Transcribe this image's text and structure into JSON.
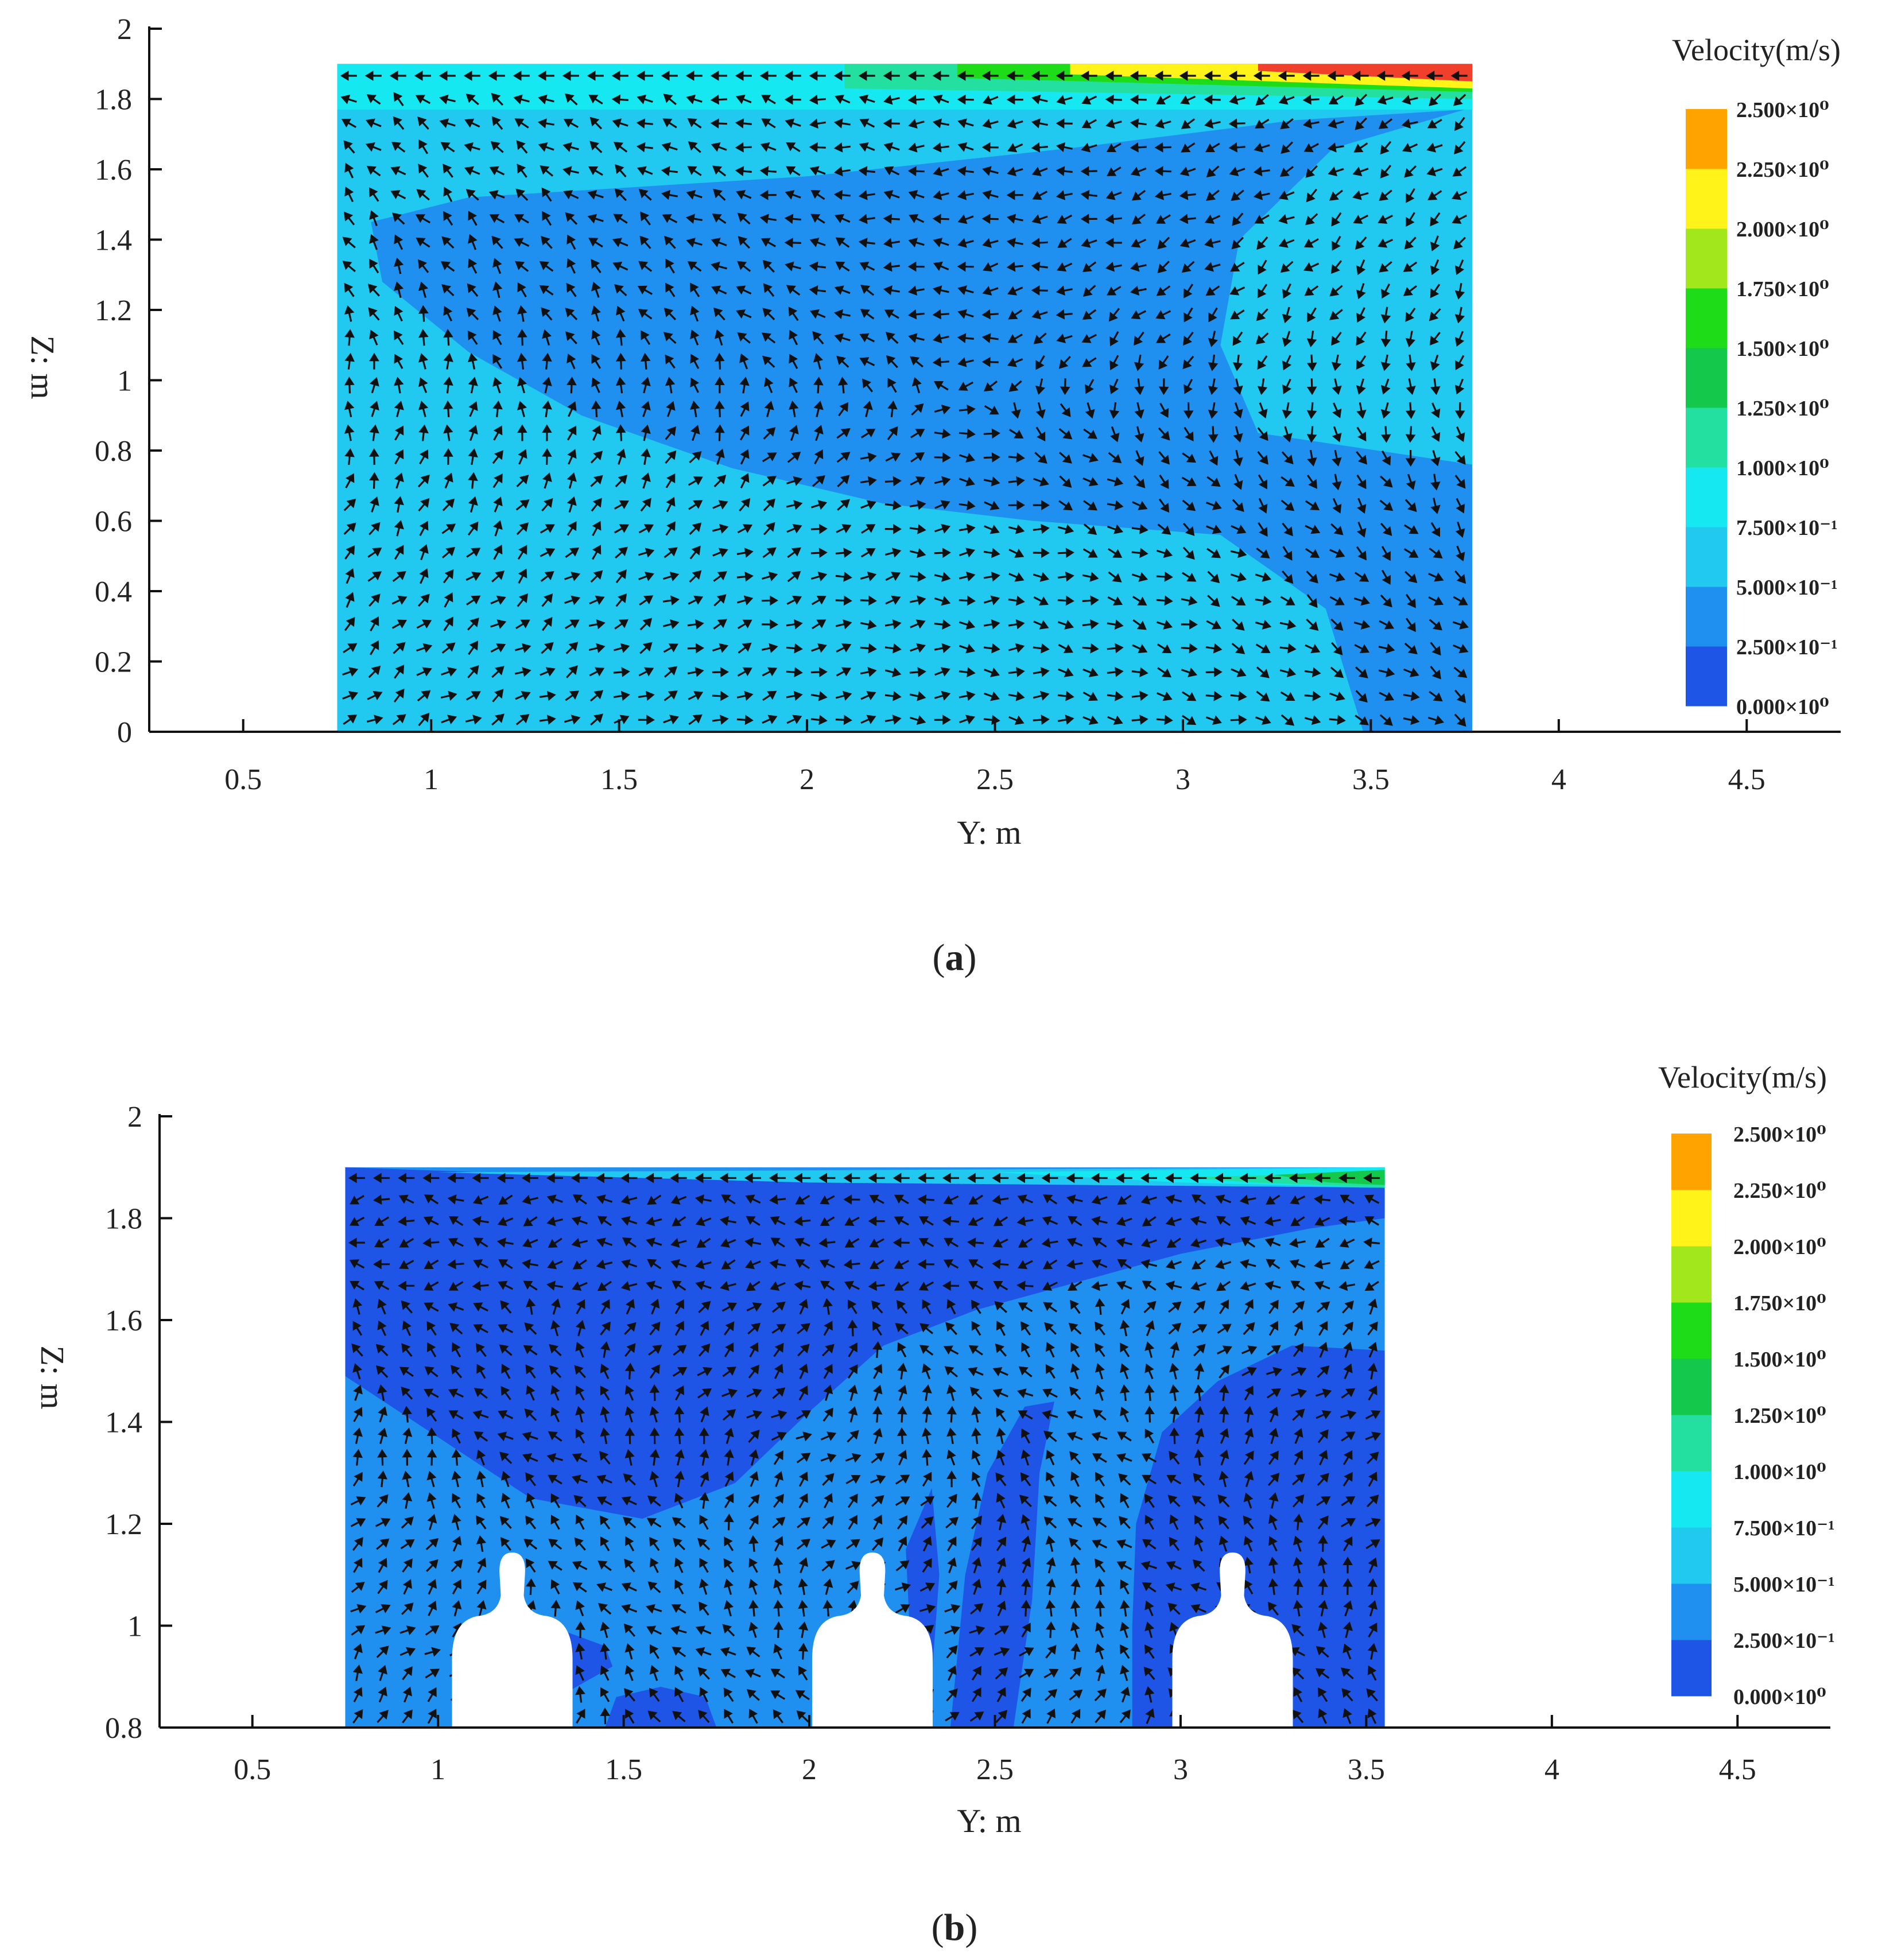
{
  "chart_data": [
    {
      "type": "heatmap",
      "subtype": "cfd-velocity-contour-with-vectors",
      "panel_label_prefix": "(",
      "panel_label": "a",
      "panel_label_suffix": ")",
      "xlabel": "Y: m",
      "ylabel": "Z: m",
      "xlim": [
        0.25,
        4.75
      ],
      "ylim": [
        0,
        2
      ],
      "xticks": [
        0.5,
        1,
        1.5,
        2,
        2.5,
        3,
        3.5,
        4,
        4.5
      ],
      "xtick_labels": [
        "0.5",
        "1",
        "1.5",
        "2",
        "2.5",
        "3",
        "3.5",
        "4",
        "4.5"
      ],
      "yticks": [
        0,
        0.2,
        0.4,
        0.6,
        0.8,
        1,
        1.2,
        1.4,
        1.6,
        1.8,
        2
      ],
      "ytick_labels": [
        "0",
        "0.2",
        "0.4",
        "0.6",
        "0.8",
        "1",
        "1.2",
        "1.4",
        "1.6",
        "1.8",
        "2"
      ],
      "domain": {
        "y_range": [
          0.75,
          3.77
        ],
        "z_range": [
          0,
          1.9
        ]
      },
      "regions": [
        {
          "level": 0.5,
          "polygon": [
            [
              0.75,
              0
            ],
            [
              3.77,
              0
            ],
            [
              3.77,
              1.9
            ],
            [
              0.75,
              1.9
            ]
          ]
        },
        {
          "level": 0.25,
          "polygon": [
            [
              0.87,
              1.28
            ],
            [
              0.84,
              1.45
            ],
            [
              1.1,
              1.52
            ],
            [
              2.0,
              1.58
            ],
            [
              2.7,
              1.66
            ],
            [
              3.3,
              1.74
            ],
            [
              3.75,
              1.77
            ],
            [
              3.4,
              1.66
            ],
            [
              3.15,
              1.4
            ],
            [
              3.1,
              1.1
            ],
            [
              3.2,
              0.85
            ],
            [
              3.77,
              0.76
            ],
            [
              3.77,
              0
            ],
            [
              3.48,
              0
            ],
            [
              3.38,
              0.35
            ],
            [
              3.1,
              0.56
            ],
            [
              2.6,
              0.6
            ],
            [
              2.2,
              0.65
            ],
            [
              1.8,
              0.75
            ],
            [
              1.4,
              0.9
            ],
            [
              1.1,
              1.08
            ]
          ]
        },
        {
          "level": 0.75,
          "polygon": [
            [
              0.75,
              1.77
            ],
            [
              3.77,
              1.77
            ],
            [
              3.77,
              1.9
            ],
            [
              0.75,
              1.9
            ]
          ]
        },
        {
          "level": 1.0,
          "polygon": [
            [
              2.1,
              1.83
            ],
            [
              3.77,
              1.8
            ],
            [
              3.77,
              1.9
            ],
            [
              2.1,
              1.9
            ]
          ]
        },
        {
          "level": 1.5,
          "polygon": [
            [
              2.4,
              1.86
            ],
            [
              3.77,
              1.82
            ],
            [
              3.77,
              1.9
            ],
            [
              2.4,
              1.9
            ]
          ]
        },
        {
          "level": 2.0,
          "polygon": [
            [
              2.7,
              1.87
            ],
            [
              3.77,
              1.83
            ],
            [
              3.77,
              1.9
            ],
            [
              2.7,
              1.9
            ]
          ]
        },
        {
          "level": 2.5,
          "polygon": [
            [
              3.2,
              1.88
            ],
            [
              3.77,
              1.85
            ],
            [
              3.77,
              1.9
            ],
            [
              3.2,
              1.9
            ]
          ]
        }
      ],
      "occupants": [],
      "colorbar": {
        "title": "Velocity(m/s)",
        "levels": [
          0,
          0.25,
          0.5,
          0.75,
          1.0,
          1.25,
          1.5,
          1.75,
          2.0,
          2.25,
          2.5
        ],
        "labels": [
          "0.000×10⁰",
          "2.500×10⁻¹",
          "5.000×10⁻¹",
          "7.500×10⁻¹",
          "1.000×10⁰",
          "1.250×10⁰",
          "1.500×10⁰",
          "1.750×10⁰",
          "2.000×10⁰",
          "2.250×10⁰",
          "2.500×10⁰"
        ],
        "colors": [
          "#1f55e6",
          "#1f8ff0",
          "#21c8ef",
          "#16e8f2",
          "#24e0a0",
          "#13c84b",
          "#1fdc18",
          "#a2e71b",
          "#fff31a",
          "#ffa300",
          "#f0402c"
        ]
      },
      "flow_pattern": "recirculation"
    },
    {
      "type": "heatmap",
      "subtype": "cfd-velocity-contour-with-vectors",
      "panel_label_prefix": "(",
      "panel_label": "b",
      "panel_label_suffix": ")",
      "xlabel": "Y: m",
      "ylabel": "Z: m",
      "xlim": [
        0.25,
        4.75
      ],
      "ylim": [
        0.8,
        2
      ],
      "xticks": [
        0.5,
        1,
        1.5,
        2,
        2.5,
        3,
        3.5,
        4,
        4.5
      ],
      "xtick_labels": [
        "0.5",
        "1",
        "1.5",
        "2",
        "2.5",
        "3",
        "3.5",
        "4",
        "4.5"
      ],
      "yticks": [
        0.8,
        1,
        1.2,
        1.4,
        1.6,
        1.8,
        2
      ],
      "ytick_labels": [
        "0.8",
        "1",
        "1.2",
        "1.4",
        "1.6",
        "1.8",
        "2"
      ],
      "domain": {
        "y_range": [
          0.75,
          3.55
        ],
        "z_range": [
          0.8,
          1.9
        ]
      },
      "regions": [
        {
          "level": 0.25,
          "polygon": [
            [
              0.75,
              0.8
            ],
            [
              3.55,
              0.8
            ],
            [
              3.55,
              1.9
            ],
            [
              0.75,
              1.9
            ]
          ]
        },
        {
          "level": 0,
          "polygon": [
            [
              0.75,
              1.49
            ],
            [
              0.75,
              1.9
            ],
            [
              1.5,
              1.88
            ],
            [
              3.55,
              1.86
            ],
            [
              3.55,
              1.8
            ],
            [
              3.35,
              1.78
            ],
            [
              3.0,
              1.73
            ],
            [
              2.7,
              1.67
            ],
            [
              2.45,
              1.62
            ],
            [
              2.2,
              1.55
            ],
            [
              2.0,
              1.42
            ],
            [
              1.8,
              1.28
            ],
            [
              1.55,
              1.21
            ],
            [
              1.25,
              1.25
            ],
            [
              1.0,
              1.37
            ]
          ]
        },
        {
          "level": 0,
          "polygon": [
            [
              2.87,
              0.8
            ],
            [
              3.55,
              0.8
            ],
            [
              3.55,
              1.54
            ],
            [
              3.3,
              1.55
            ],
            [
              3.1,
              1.48
            ],
            [
              2.95,
              1.38
            ],
            [
              2.88,
              1.2
            ],
            [
              2.87,
              1.0
            ]
          ]
        },
        {
          "level": 0,
          "polygon": [
            [
              2.38,
              0.8
            ],
            [
              2.55,
              0.8
            ],
            [
              2.6,
              1.05
            ],
            [
              2.62,
              1.3
            ],
            [
              2.66,
              1.44
            ],
            [
              2.58,
              1.43
            ],
            [
              2.48,
              1.3
            ],
            [
              2.42,
              1.1
            ]
          ]
        },
        {
          "level": 0,
          "polygon": [
            [
              2.26,
              0.8
            ],
            [
              2.32,
              0.8
            ],
            [
              2.35,
              1.1
            ],
            [
              2.33,
              1.27
            ],
            [
              2.26,
              1.15
            ],
            [
              2.27,
              1.0
            ]
          ]
        },
        {
          "level": 0,
          "polygon": [
            [
              1.05,
              0.8
            ],
            [
              1.1,
              0.95
            ],
            [
              1.2,
              1.0
            ],
            [
              1.3,
              1.0
            ],
            [
              1.45,
              0.96
            ],
            [
              1.47,
              0.92
            ],
            [
              1.3,
              0.85
            ],
            [
              1.28,
              0.8
            ]
          ]
        },
        {
          "level": 0,
          "polygon": [
            [
              1.45,
              0.8
            ],
            [
              1.48,
              0.86
            ],
            [
              1.6,
              0.88
            ],
            [
              1.72,
              0.86
            ],
            [
              1.75,
              0.8
            ]
          ]
        },
        {
          "level": 0.5,
          "polygon": [
            [
              1.0,
              1.89
            ],
            [
              3.55,
              1.9
            ],
            [
              3.55,
              1.86
            ],
            [
              2.0,
              1.87
            ]
          ]
        },
        {
          "level": 0.75,
          "polygon": [
            [
              2.5,
              1.89
            ],
            [
              3.55,
              1.9
            ],
            [
              3.55,
              1.86
            ],
            [
              3.0,
              1.87
            ]
          ]
        },
        {
          "level": 1.0,
          "polygon": [
            [
              3.0,
              1.88
            ],
            [
              3.55,
              1.89
            ],
            [
              3.55,
              1.86
            ],
            [
              3.2,
              1.87
            ]
          ]
        },
        {
          "level": 1.25,
          "polygon": [
            [
              3.25,
              1.885
            ],
            [
              3.55,
              1.895
            ],
            [
              3.55,
              1.865
            ],
            [
              3.4,
              1.87
            ]
          ]
        }
      ],
      "occupants": [
        {
          "center_y": 1.2
        },
        {
          "center_y": 2.17
        },
        {
          "center_y": 3.14
        }
      ],
      "colorbar": {
        "title": "Velocity(m/s)",
        "levels": [
          0,
          0.25,
          0.5,
          0.75,
          1.0,
          1.25,
          1.5,
          1.75,
          2.0,
          2.25,
          2.5
        ],
        "labels": [
          "0.000×10⁰",
          "2.500×10⁻¹",
          "5.000×10⁻¹",
          "7.500×10⁻¹",
          "1.000×10⁰",
          "1.250×10⁰",
          "1.500×10⁰",
          "1.750×10⁰",
          "2.000×10⁰",
          "2.250×10⁰",
          "2.500×10⁰"
        ],
        "colors": [
          "#1f55e6",
          "#1f8ff0",
          "#21c8ef",
          "#16e8f2",
          "#24e0a0",
          "#13c84b",
          "#1fdc18",
          "#a2e71b",
          "#fff31a",
          "#ffa300",
          "#f0402c"
        ]
      },
      "flow_pattern": "plumes"
    }
  ]
}
